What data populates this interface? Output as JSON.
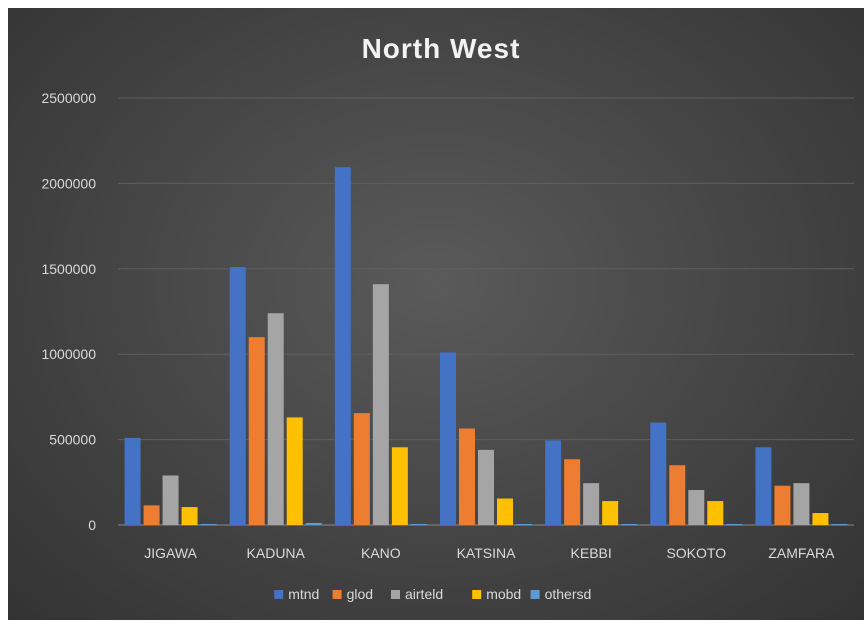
{
  "chart_data": {
    "type": "bar",
    "title": "North West",
    "categories": [
      "JIGAWA",
      "KADUNA",
      "KANO",
      "KATSINA",
      "KEBBI",
      "SOKOTO",
      "ZAMFARA"
    ],
    "series": [
      {
        "name": "mtnd",
        "color": "#4472c4",
        "values": [
          510000,
          1510000,
          2095000,
          1010000,
          495000,
          600000,
          455000
        ]
      },
      {
        "name": "glod",
        "color": "#ed7d31",
        "values": [
          115000,
          1100000,
          655000,
          565000,
          385000,
          350000,
          230000
        ]
      },
      {
        "name": "airteld",
        "color": "#a5a5a5",
        "values": [
          290000,
          1240000,
          1410000,
          440000,
          245000,
          205000,
          245000
        ]
      },
      {
        "name": "mobd",
        "color": "#ffc000",
        "values": [
          105000,
          630000,
          455000,
          155000,
          140000,
          140000,
          70000
        ]
      },
      {
        "name": "othersd",
        "color": "#5b9bd5",
        "values": [
          3000,
          12000,
          6000,
          5000,
          2000,
          4000,
          2000
        ]
      }
    ],
    "y_ticks": [
      "0",
      "500000",
      "1000000",
      "1500000",
      "2000000",
      "2500000"
    ],
    "ylim": [
      0,
      2500000
    ],
    "grid": true,
    "legend_position": "bottom",
    "xlabel": "",
    "ylabel": ""
  }
}
